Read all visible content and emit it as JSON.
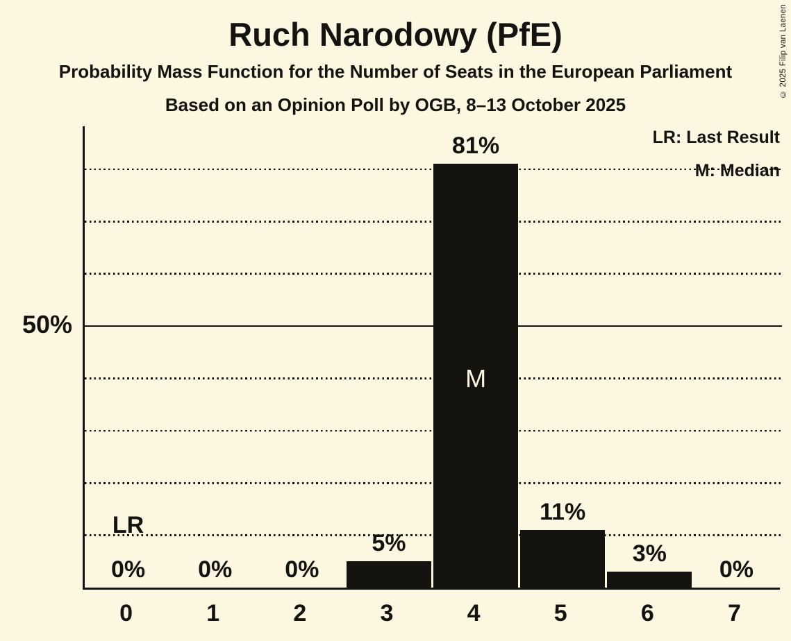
{
  "title": "Ruch Narodowy (PfE)",
  "subtitle": "Probability Mass Function for the Number of Seats in the European Parliament",
  "poll_line": "Based on an Opinion Poll by OGB, 8–13 October 2025",
  "copyright": "© 2025 Filip van Laenen",
  "legend": {
    "lr": "LR: Last Result",
    "m": "M: Median"
  },
  "y_axis": {
    "tick_label": "50%",
    "tick_value": 50
  },
  "chart_data": {
    "type": "bar",
    "title": "Ruch Narodowy (PfE)",
    "xlabel": "",
    "ylabel": "",
    "categories": [
      "0",
      "1",
      "2",
      "3",
      "4",
      "5",
      "6",
      "7"
    ],
    "values": [
      0,
      0,
      0,
      5,
      81,
      11,
      3,
      0
    ],
    "value_labels": [
      "0%",
      "0%",
      "0%",
      "5%",
      "81%",
      "11%",
      "3%",
      "0%"
    ],
    "ylim": [
      0,
      88
    ],
    "y_tick_labels": [
      "50%"
    ],
    "gridlines_pct": [
      10,
      20,
      30,
      40,
      50,
      60,
      70,
      80
    ],
    "solid_gridline_pct": 50,
    "grid_style": "dotted horizontal",
    "legend_position": "top-right",
    "annotations": [
      {
        "label": "LR",
        "meaning": "Last Result",
        "seat_index": 0
      },
      {
        "label": "M",
        "meaning": "Median",
        "seat_index": 4
      }
    ]
  },
  "colors": {
    "background": "#FCF7E1",
    "bar": "#141310",
    "ink": "#141310"
  }
}
